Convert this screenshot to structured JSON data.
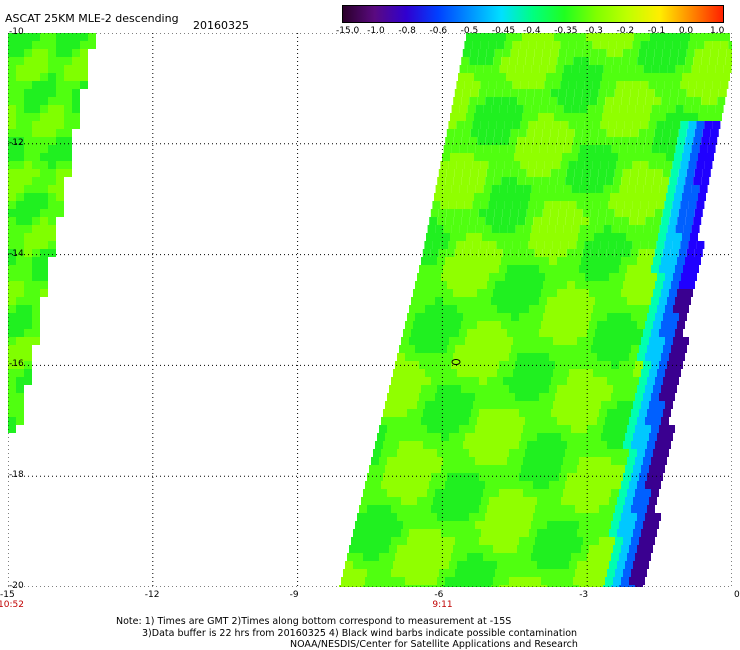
{
  "header": {
    "title": "ASCAT 25KM MLE-2 descending",
    "date": "20160325"
  },
  "colorbar": {
    "labels": [
      "-15.0",
      "-1.0",
      "-0.8",
      "-0.6",
      "-0.5",
      "-0.45",
      "-0.4",
      "-0.35",
      "-0.3",
      "-0.2",
      "-0.1",
      "0.0",
      "1.0"
    ],
    "colors": [
      "#2a002a",
      "#5a0a80",
      "#3000d0",
      "#0040ff",
      "#0090ff",
      "#00e0ff",
      "#00ff80",
      "#20ff20",
      "#80ff00",
      "#c0ff00",
      "#ffee00",
      "#ff8800",
      "#ff2000"
    ]
  },
  "map": {
    "x_ticks": [
      "-15",
      "-12",
      "-9",
      "-6",
      "-3",
      "0"
    ],
    "y_ticks": [
      "-10",
      "-12",
      "-14",
      "-16",
      "-18",
      "-20"
    ],
    "lon_range": [
      -15,
      0
    ],
    "lat_range": [
      -20,
      -10
    ],
    "time_labels": [
      {
        "text": "10:52",
        "lon": -15
      },
      {
        "text": "9:11",
        "lon": -6
      }
    ]
  },
  "footer": {
    "line1": "Note: 1) Times are GMT 2)Times along bottom correspond to measurement at -15S",
    "line2": "3)Data buffer is 22 hrs from 20160325 4) Black wind barbs indicate possible contamination",
    "line3": "NOAA/NESDIS/Center for Satellite Applications and Research"
  }
}
